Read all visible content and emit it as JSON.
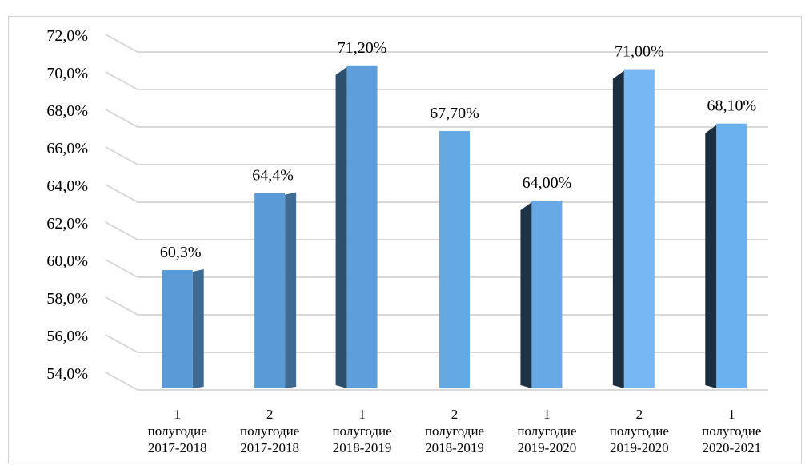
{
  "chart_data": {
    "type": "bar",
    "ylim": [
      54,
      72
    ],
    "y_step": 2,
    "y_tick_labels": [
      "54,0%",
      "56,0%",
      "58,0%",
      "60,0%",
      "62,0%",
      "64,0%",
      "66,0%",
      "68,0%",
      "70,0%",
      "72,0%"
    ],
    "grid": true,
    "legend": "none",
    "categories": [
      [
        "1",
        "полугодие",
        "2017-2018"
      ],
      [
        "2",
        "полугодие",
        "2017-2018"
      ],
      [
        "1",
        "полугодие",
        "2018-2019"
      ],
      [
        "2",
        "полугодие",
        "2018-2019"
      ],
      [
        "1",
        "полугодие",
        "2019-2020"
      ],
      [
        "2",
        "полугодие",
        "2019-2020"
      ],
      [
        "1",
        "полугодие",
        "2020-2021"
      ]
    ],
    "values": [
      60.3,
      64.4,
      71.2,
      67.7,
      64.0,
      71.0,
      68.1
    ],
    "data_labels": [
      "60,3%",
      "64,4%",
      "71,20%",
      "67,70%",
      "64,00%",
      "71,00%",
      "68,10%"
    ],
    "colors": {
      "bar_fronts": [
        "#5b9bd5",
        "#5b9bd5",
        "#5e9fdb",
        "#64a8e4",
        "#66a9e6",
        "#78b8f2",
        "#6ab1ef"
      ],
      "bar_sides": [
        "#3d6b93",
        "#3d6b93",
        "#2c4f6d",
        "",
        "#1f3347",
        "#1c2f41",
        "#1c2f41"
      ],
      "grid": "#d9d9d9"
    }
  }
}
